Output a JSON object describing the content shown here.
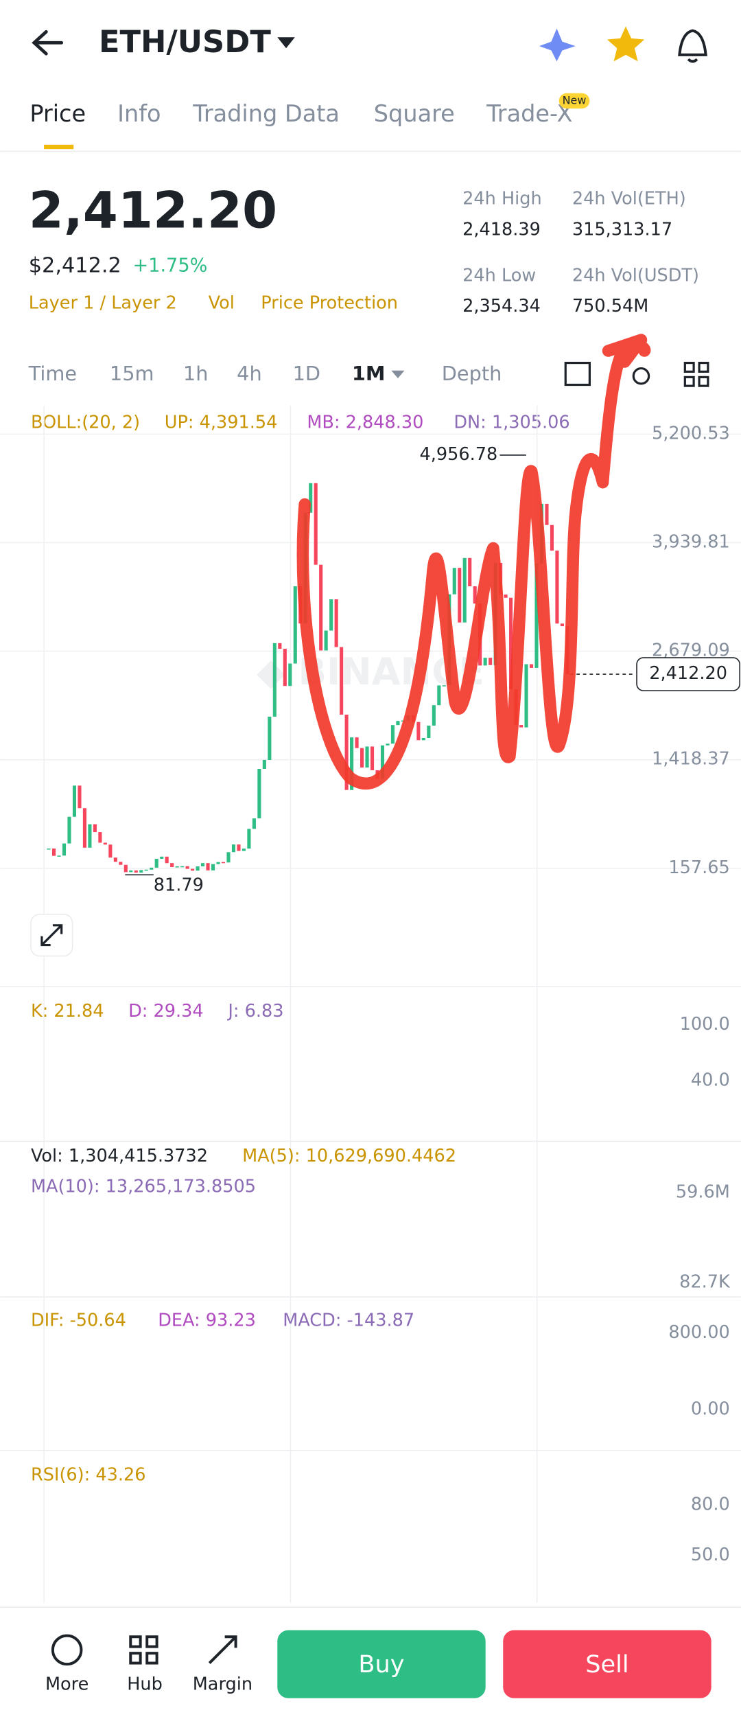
{
  "header": {
    "pair": "ETH/USDT"
  },
  "tabs": [
    "Price",
    "Info",
    "Trading Data",
    "Square",
    "Trade-X"
  ],
  "new_badge": "New",
  "price": {
    "last": "2,412.20",
    "fiat": "$2,412.2",
    "change": "+1.75%",
    "tags": [
      "Layer 1 / Layer 2",
      "Vol",
      "Price Protection"
    ]
  },
  "stats": [
    {
      "label": "24h High",
      "value": "2,418.39"
    },
    {
      "label": "24h Vol(ETH)",
      "value": "315,313.17"
    },
    {
      "label": "24h Low",
      "value": "2,354.34"
    },
    {
      "label": "24h Vol(USDT)",
      "value": "750.54M"
    }
  ],
  "intervals": [
    "Time",
    "15m",
    "1h",
    "4h",
    "1D",
    "1M",
    "Depth"
  ],
  "chart_data": {
    "type": "candlestick",
    "indicator": {
      "name": "BOLL:(20, 2)",
      "up": "UP: 4,391.54",
      "mb": "MB: 2,848.30",
      "dn": "DN: 1,305.06"
    },
    "values": [
      387,
      302,
      305,
      446,
      756,
      1118,
      856,
      397,
      669,
      578,
      455,
      433,
      282,
      232,
      198,
      113,
      133,
      107,
      136,
      142,
      165,
      268,
      293,
      218,
      172,
      180,
      182,
      151,
      130,
      180,
      218,
      133,
      206,
      230,
      225,
      345,
      434,
      359,
      386,
      615,
      737,
      1312,
      1416,
      1919,
      2773,
      2707,
      2275,
      2536,
      3433,
      3001,
      4288,
      4631,
      3683,
      2688,
      2919,
      3282,
      2727,
      1942,
      1067,
      1678,
      1554,
      1328,
      1572,
      1296,
      1196,
      1585,
      1605,
      1821,
      1869,
      1874,
      1934,
      1857,
      1645,
      1671,
      1815,
      2052,
      2282,
      2283,
      3340,
      3647,
      3013,
      3762,
      3433,
      3232,
      2513,
      2603,
      2518,
      3705,
      3337,
      3300,
      2237,
      1822,
      1794,
      2528,
      2485,
      3697,
      4391,
      4145,
      3848,
      3000,
      2970,
      2412
    ],
    "up_color": "#2ebd85",
    "down_color": "#f6465d",
    "ylim": [
      -1217.6,
      5531.6
    ],
    "yticks": [
      {
        "value": 5200.53,
        "label": "5,200.53"
      },
      {
        "value": 3939.81,
        "label": "3,939.81"
      },
      {
        "value": 2679.09,
        "label": "2,679.09"
      },
      {
        "value": 1418.37,
        "label": "1,418.37"
      },
      157.65
    ],
    "high": {
      "value": 4956.78,
      "label": "4,956.78"
    },
    "low": 81.79,
    "last": {
      "value": 2412.2,
      "label": "2,412.20"
    },
    "grid": true
  },
  "panels": [
    {
      "labels": [
        "K: 21.84",
        "D: 29.34",
        "J: 6.83"
      ],
      "ticks": [
        "100.0",
        "40.0"
      ]
    },
    {
      "labels": [
        "Vol: 1,304,415.3732",
        "MA(5): 10,629,690.4462",
        "MA(10): 13,265,173.8505"
      ],
      "ticks": [
        "59.6M",
        "82.7K"
      ]
    },
    {
      "labels": [
        "DIF: -50.64",
        "DEA: 93.23",
        "MACD: -143.87"
      ],
      "ticks": [
        "800.00",
        "0.00"
      ]
    },
    {
      "labels": [
        "RSI(6): 43.26"
      ],
      "ticks": [
        "80.0",
        "50.0"
      ]
    }
  ],
  "bottom": {
    "tools": [
      "More",
      "Hub",
      "Margin"
    ],
    "buy": "Buy",
    "sell": "Sell"
  }
}
